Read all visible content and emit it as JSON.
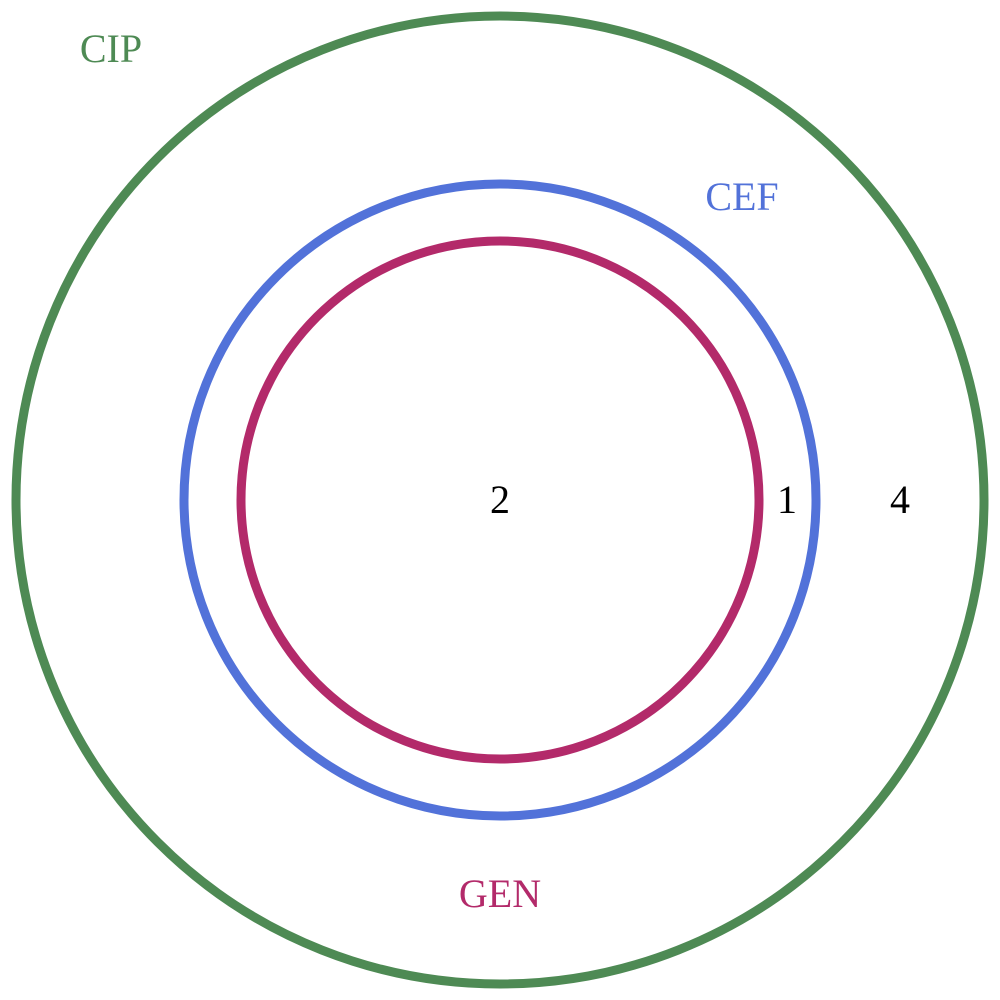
{
  "sets": [
    {
      "key": "cip",
      "label": "CIP",
      "color": "#4e8a54"
    },
    {
      "key": "cef",
      "label": "CEF",
      "color": "#5272d9"
    },
    {
      "key": "gen",
      "label": "GEN",
      "color": "#b32a6a"
    }
  ],
  "regions": {
    "gen_only": "2",
    "cef_minus_gen": "1",
    "cip_minus_cef": "4"
  }
}
